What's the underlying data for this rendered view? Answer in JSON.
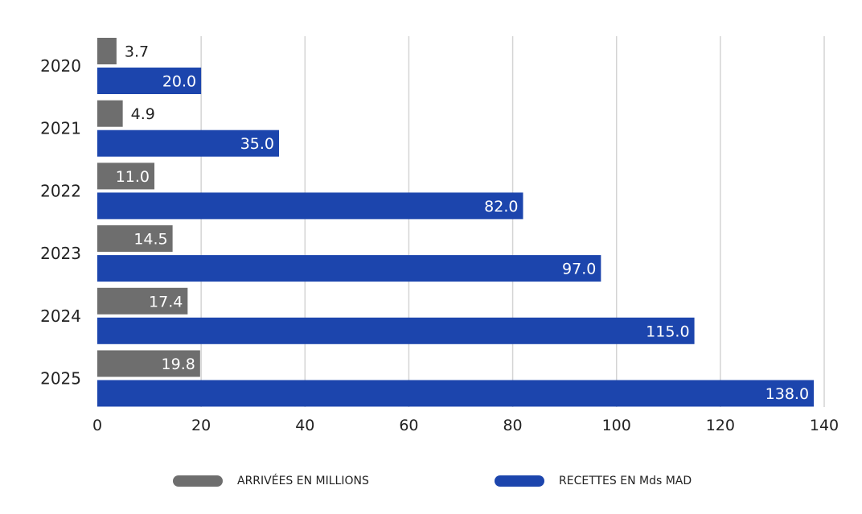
{
  "chart_data": {
    "type": "bar",
    "orientation": "horizontal",
    "categories": [
      "2020",
      "2021",
      "2022",
      "2023",
      "2024",
      "2025"
    ],
    "series": [
      {
        "name": "ARRIVÉES EN MILLIONS",
        "color": "#6e6e6e",
        "values": [
          3.7,
          4.9,
          11.0,
          14.5,
          17.4,
          19.8
        ]
      },
      {
        "name": "RECETTES EN Mds MAD",
        "color": "#1c45ad",
        "values": [
          20.0,
          35.0,
          82.0,
          97.0,
          115.0,
          138.0
        ]
      }
    ],
    "data_labels": [
      [
        "3.7",
        "4.9",
        "11.0",
        "14.5",
        "17.4",
        "19.8"
      ],
      [
        "20.0",
        "35.0",
        "82.0",
        "97.0",
        "115.0",
        "138.0"
      ]
    ],
    "xlim": [
      0,
      140
    ],
    "xticks": [
      "0",
      "20",
      "40",
      "60",
      "80",
      "100",
      "120",
      "140"
    ],
    "grid": true,
    "legend_position": "bottom"
  }
}
